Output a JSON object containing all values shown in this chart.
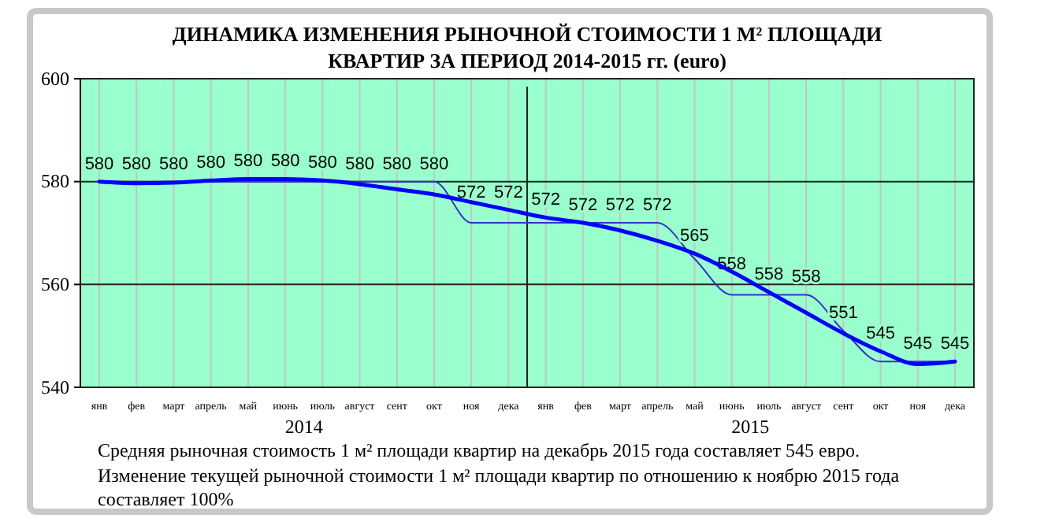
{
  "chart_data": {
    "type": "line",
    "title": "ДИНАМИКА ИЗМЕНЕНИЯ РЫНОЧНОЙ СТОИМОСТИ  1 М² ПЛОЩАДИ КВАРТИР ЗА ПЕРИОД 2014-2015 гг. (euro)",
    "categories": [
      "янв",
      "фев",
      "март",
      "апрель",
      "май",
      "июнь",
      "июль",
      "август",
      "сент",
      "окт",
      "ноя",
      "дека",
      "янв",
      "фев",
      "март",
      "апрель",
      "май",
      "июнь",
      "июль",
      "август",
      "сент",
      "окт",
      "ноя",
      "дека"
    ],
    "series": [
      {
        "color": "#3333cc",
        "values": [
          580,
          580,
          580,
          580,
          580,
          580,
          580,
          580,
          580,
          580,
          572,
          572,
          572,
          572,
          572,
          572,
          565,
          558,
          558,
          558,
          551,
          545,
          545,
          545
        ],
        "value_labels": [
          "580",
          "580",
          "580",
          "580",
          "580",
          "580",
          "580",
          "580",
          "580",
          "580",
          "572",
          "572",
          "572",
          "572",
          "572",
          "572",
          "565",
          "558",
          "558",
          "558",
          "551",
          "545",
          "545",
          "545"
        ]
      },
      {
        "type": "line",
        "color": "#0000ff",
        "values": [
          580,
          579.7,
          579.8,
          580.2,
          580.5,
          580.5,
          580.2,
          579.5,
          578.5,
          577.5,
          576,
          574.5,
          573,
          572,
          570.5,
          568.5,
          566,
          562.5,
          558.5,
          554.5,
          550.5,
          547,
          544.5,
          545
        ]
      }
    ],
    "ylim": [
      540,
      600
    ],
    "yticks": [
      540,
      560,
      580,
      600
    ],
    "grid": true,
    "annotations": [
      "2014",
      "2015",
      "Средняя рыночная стоимость 1 м² площади квартир на декабрь 2015 года составляет 545 евро.",
      "Изменение текущей рыночной стоимости 1 м² площади квартир по отношению к ноябрю 2015 года составляет  100%"
    ]
  }
}
